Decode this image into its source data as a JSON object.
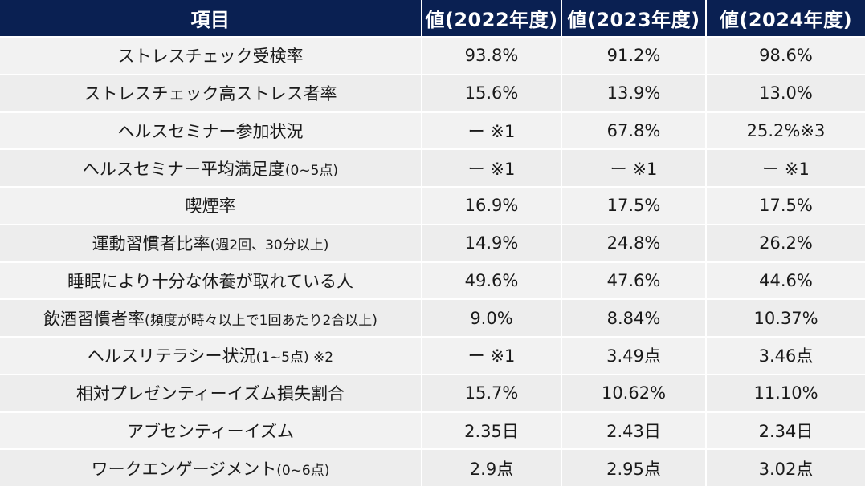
{
  "header": {
    "item": "項目",
    "y2022": "値(2022年度)",
    "y2023": "値(2023年度)",
    "y2024": "値(2024年度)"
  },
  "rows": [
    {
      "label": "ストレスチェック受検率",
      "sub": "",
      "v2022": "93.8%",
      "v2023": "91.2%",
      "v2024": "98.6%"
    },
    {
      "label": "ストレスチェック高ストレス者率",
      "sub": "",
      "v2022": "15.6%",
      "v2023": "13.9%",
      "v2024": "13.0%"
    },
    {
      "label": "ヘルスセミナー参加状況",
      "sub": "",
      "v2022": "ー ※1",
      "v2023": "67.8%",
      "v2024": "25.2%※3"
    },
    {
      "label": "ヘルスセミナー平均満足度",
      "sub": "(0~5点)",
      "v2022": "ー ※1",
      "v2023": "ー ※1",
      "v2024": "ー ※1"
    },
    {
      "label": "喫煙率",
      "sub": "",
      "v2022": "16.9%",
      "v2023": "17.5%",
      "v2024": "17.5%"
    },
    {
      "label": "運動習慣者比率",
      "sub": "(週2回、30分以上)",
      "v2022": "14.9%",
      "v2023": "24.8%",
      "v2024": "26.2%"
    },
    {
      "label": "睡眠により十分な休養が取れている人",
      "sub": "",
      "v2022": "49.6%",
      "v2023": "47.6%",
      "v2024": "44.6%"
    },
    {
      "label": "飲酒習慣者率",
      "sub": "(頻度が時々以上で1回あたり2合以上)",
      "v2022": "9.0%",
      "v2023": "8.84%",
      "v2024": "10.37%"
    },
    {
      "label": "ヘルスリテラシー状況",
      "sub": "(1~5点) ※2",
      "v2022": "ー ※1",
      "v2023": "3.49点",
      "v2024": "3.46点"
    },
    {
      "label": "相対プレゼンティーイズム損失割合",
      "sub": "",
      "v2022": "15.7%",
      "v2023": "10.62%",
      "v2024": "11.10%"
    },
    {
      "label": "アブセンティーイズム",
      "sub": "",
      "v2022": "2.35日",
      "v2023": "2.43日",
      "v2024": "2.34日"
    },
    {
      "label": "ワークエンゲージメント",
      "sub": "(0~6点)",
      "v2022": "2.9点",
      "v2023": "2.95点",
      "v2024": "3.02点"
    }
  ],
  "colors": {
    "header_bg": "#0a2052",
    "header_text": "#ffffff",
    "row_bg": "#f2f2f2"
  }
}
